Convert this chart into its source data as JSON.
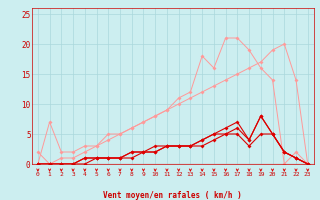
{
  "bg_color": "#cceef0",
  "grid_color": "#aad8dc",
  "line_color_light": "#ff9999",
  "line_color_dark": "#dd0000",
  "xlabel": "Vent moyen/en rafales ( km/h )",
  "xlabel_color": "#cc0000",
  "tick_color": "#cc0000",
  "ylim": [
    0,
    26
  ],
  "xlim": [
    -0.5,
    23.5
  ],
  "yticks": [
    0,
    5,
    10,
    15,
    20,
    25
  ],
  "xticks": [
    0,
    1,
    2,
    3,
    4,
    5,
    6,
    7,
    8,
    9,
    10,
    11,
    12,
    13,
    14,
    15,
    16,
    17,
    18,
    19,
    20,
    21,
    22,
    23
  ],
  "series_light_peak": [
    0,
    7,
    2,
    2,
    3,
    3,
    5,
    5,
    6,
    7,
    8,
    9,
    11,
    12,
    18,
    16,
    21,
    21,
    19,
    16,
    14,
    0,
    2,
    0
  ],
  "series_light_diag": [
    2,
    0,
    1,
    1,
    2,
    3,
    4,
    5,
    6,
    7,
    8,
    9,
    10,
    11,
    12,
    13,
    14,
    15,
    16,
    17,
    19,
    20,
    14,
    0
  ],
  "series_dark1": [
    0,
    0,
    0,
    0,
    1,
    1,
    1,
    1,
    2,
    2,
    3,
    3,
    3,
    3,
    4,
    5,
    6,
    7,
    4,
    8,
    5,
    2,
    1,
    0
  ],
  "series_dark2": [
    0,
    0,
    0,
    0,
    1,
    1,
    1,
    1,
    2,
    2,
    2,
    3,
    3,
    3,
    4,
    5,
    5,
    6,
    4,
    8,
    5,
    2,
    1,
    0
  ],
  "series_dark3": [
    0,
    0,
    0,
    0,
    0,
    1,
    1,
    1,
    1,
    2,
    2,
    3,
    3,
    3,
    3,
    4,
    5,
    5,
    3,
    5,
    5,
    2,
    1,
    0
  ]
}
